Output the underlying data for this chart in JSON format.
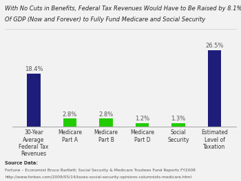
{
  "categories": [
    "30-Year\nAverage\nFederal Tax\nRevenues",
    "Medicare\nPart A",
    "Medicare\nPart B",
    "Medicare\nPart D",
    "Social\nSecurity",
    "Estimated\nLevel of\nTaxation"
  ],
  "values": [
    18.4,
    2.8,
    2.8,
    1.2,
    1.3,
    26.5
  ],
  "bar_colors": [
    "#1e1e7a",
    "#22cc00",
    "#22cc00",
    "#22cc00",
    "#22cc00",
    "#1e1e7a"
  ],
  "value_labels": [
    "18.4%",
    "2.8%",
    "2.8%",
    "1.2%",
    "1.3%",
    "26.5%"
  ],
  "title_line1": "With No Cuts in Benefits, Federal Tax Revenues Would Have to Be Raised by 8.1%",
  "title_line2": "Of GDP (Now and Forever) to Fully Fund Medicare and Social Security",
  "ylim": [
    0,
    30
  ],
  "source_bold": "Source Data:",
  "source_line1": "Fortune – Economist Bruce Bartlett; Social Security & Medicare Trustees Fund Reports FY2008",
  "source_line2": "http://www.forbes.com/2009/05/14/taxes-social-security-opinions-columnists-medicare.html",
  "bar_width": 0.38,
  "background_color": "#f2f2f2"
}
